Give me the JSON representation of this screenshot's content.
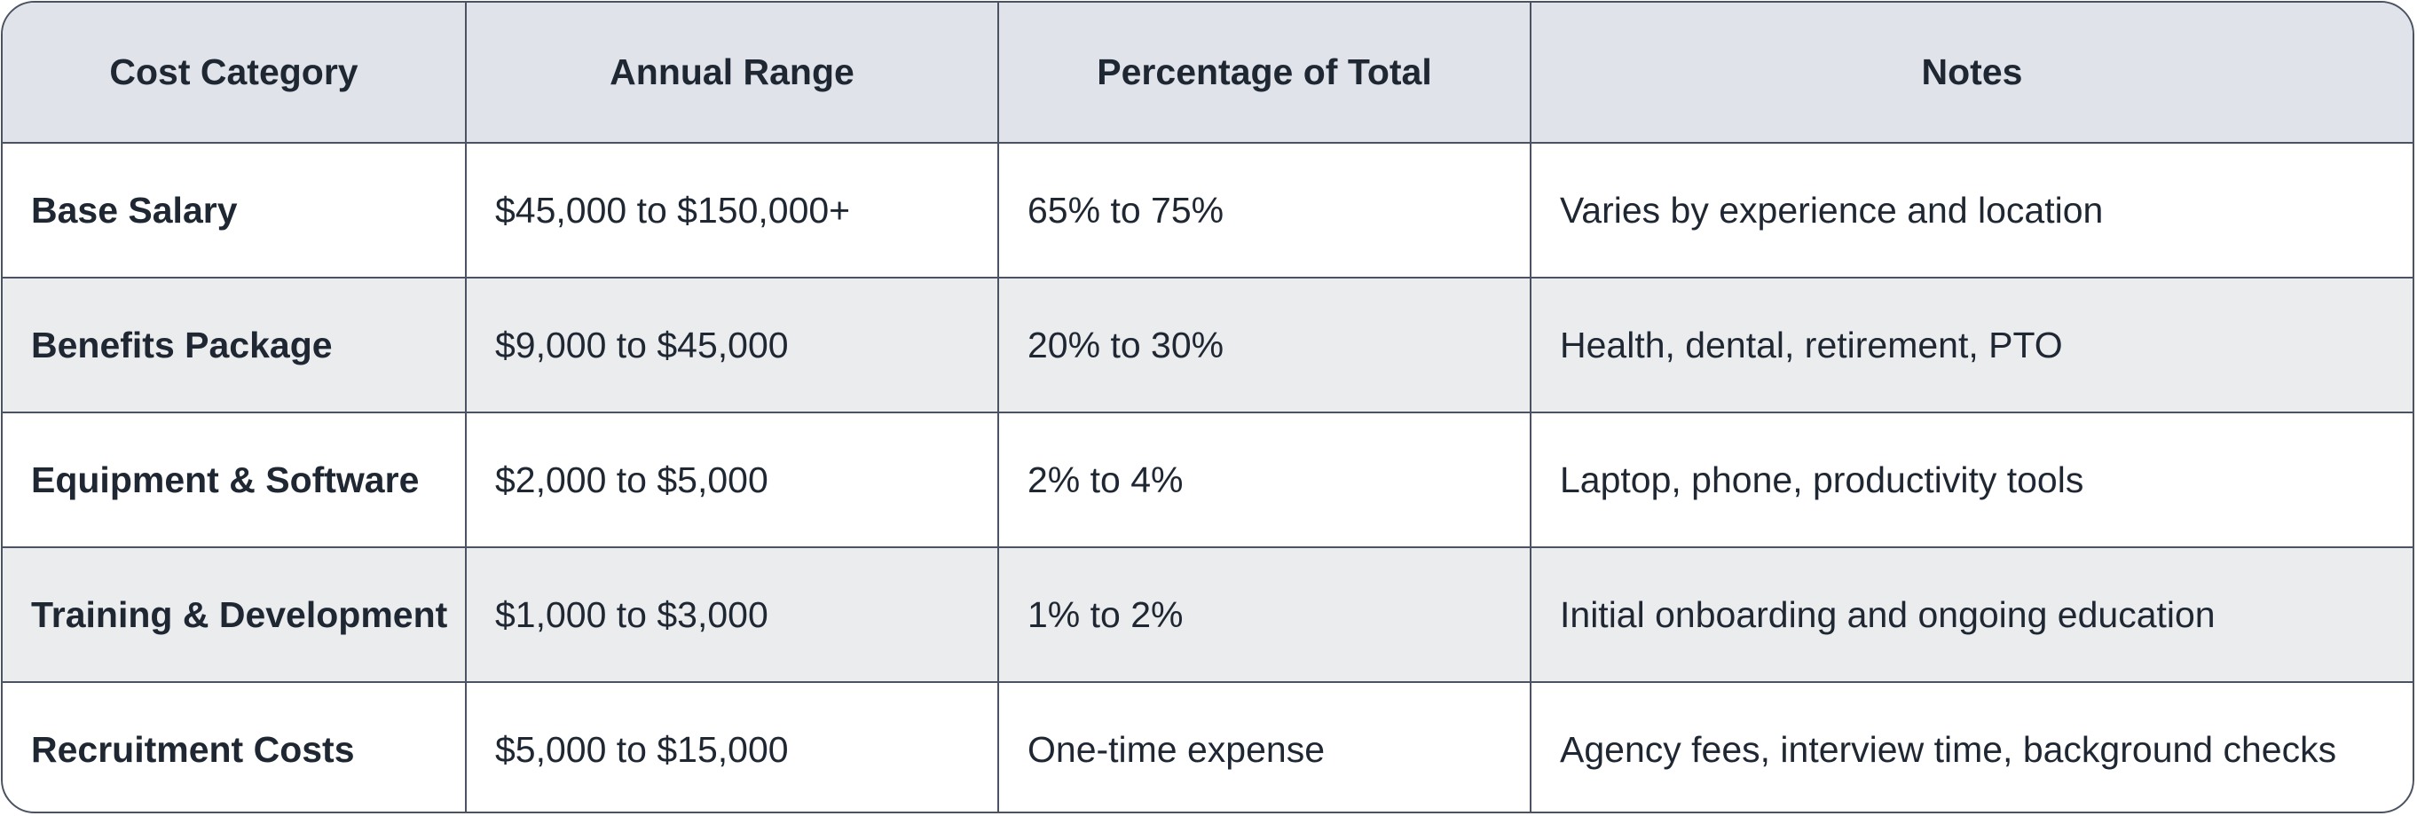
{
  "table": {
    "headers": [
      "Cost Category",
      "Annual Range",
      "Percentage of Total",
      "Notes"
    ],
    "rows": [
      {
        "category": "Base Salary",
        "range": "$45,000 to $150,000+",
        "percentage": "65% to 75%",
        "notes": "Varies by experience and location"
      },
      {
        "category": "Benefits Package",
        "range": "$9,000 to $45,000",
        "percentage": "20% to 30%",
        "notes": "Health, dental, retirement, PTO"
      },
      {
        "category": "Equipment & Software",
        "range": "$2,000 to $5,000",
        "percentage": "2% to 4%",
        "notes": "Laptop, phone, productivity tools"
      },
      {
        "category": "Training & Development",
        "range": "$1,000 to $3,000",
        "percentage": "1% to 2%",
        "notes": "Initial onboarding and ongoing education"
      },
      {
        "category": "Recruitment Costs",
        "range": "$5,000 to $15,000",
        "percentage": "One-time expense",
        "notes": "Agency fees, interview time, background checks"
      }
    ]
  },
  "colors": {
    "header_bg": "#e0e4ea",
    "alt_row_bg": "#ebecee",
    "border": "#4b5262",
    "text": "#1f2733"
  }
}
